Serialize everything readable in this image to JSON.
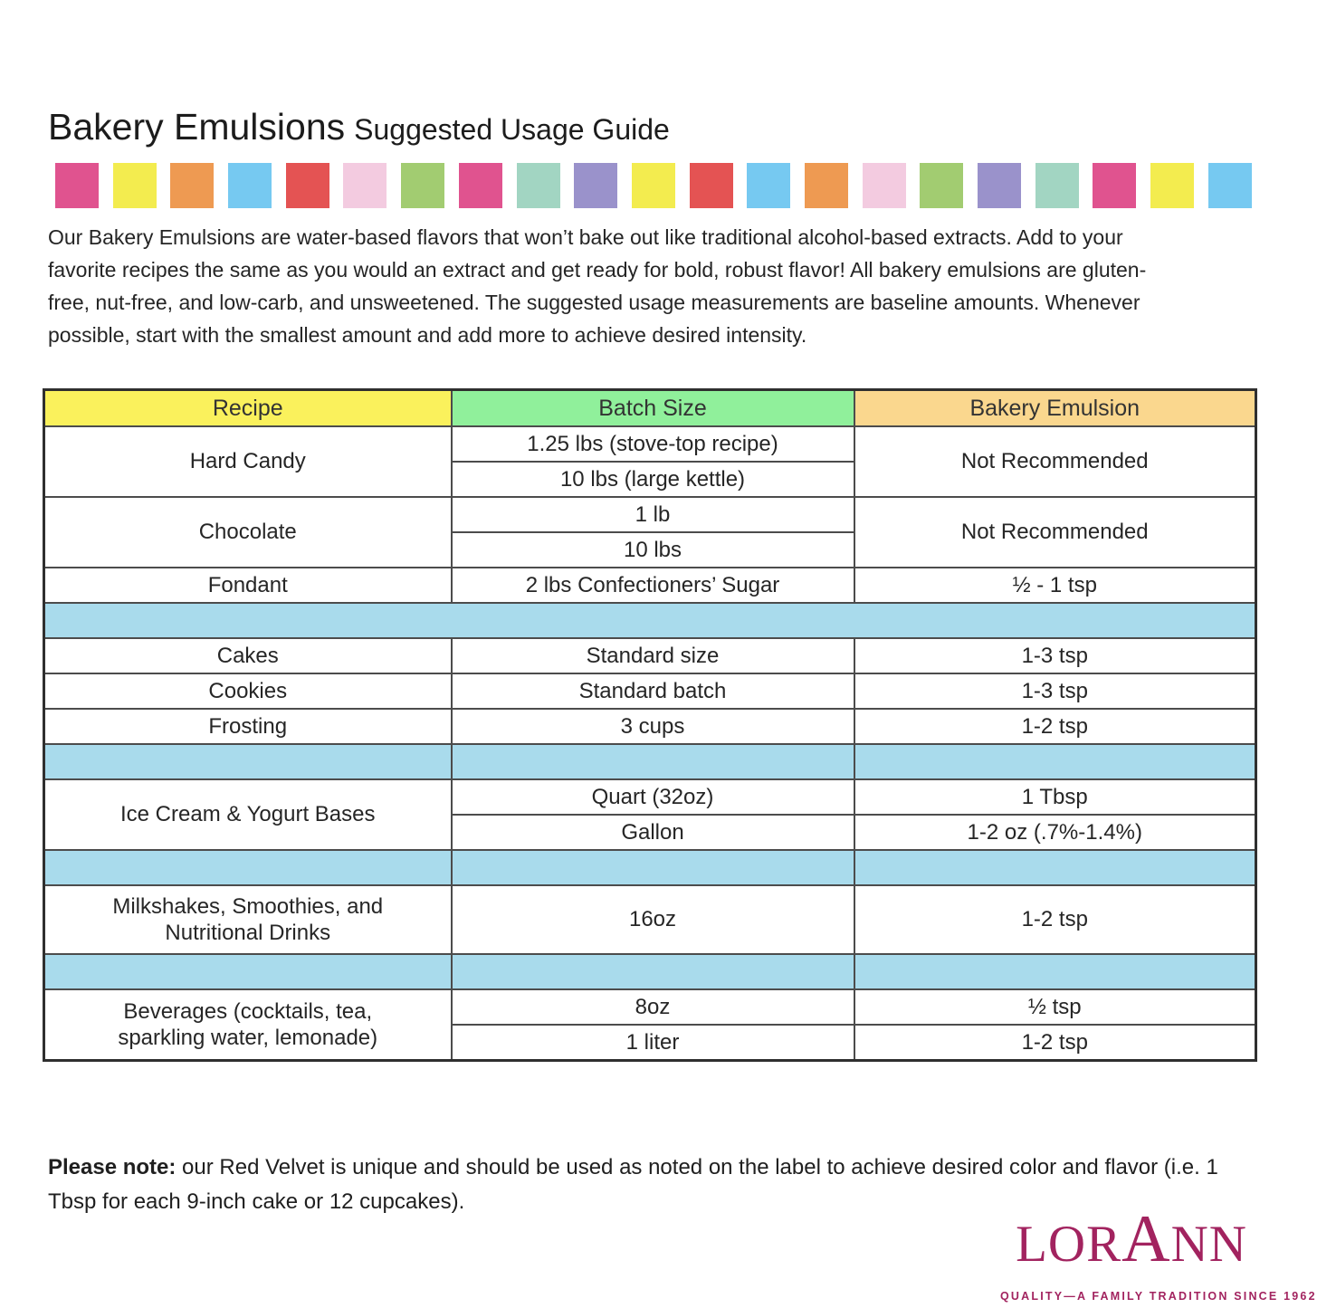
{
  "page": {
    "title_main": "Bakery Emulsions",
    "title_sub": "Suggested Usage Guide"
  },
  "colors": {
    "header_recipe": "#FAF15C",
    "header_batch": "#90F09B",
    "header_emulsion": "#FAD78E",
    "spacer_blue": "#A9DBEC",
    "logo": "#A2235F"
  },
  "stripe": {
    "colors": {
      "pink": "#E0538F",
      "yellow": "#F3EC4F",
      "orange": "#EE9A52",
      "blue": "#76C9F1",
      "red": "#E45353",
      "palepink": "#F3CBE0",
      "green": "#A2CC71",
      "seafoam": "#A2D5C2",
      "purple": "#9A92CB"
    },
    "order": [
      "pink",
      "yellow",
      "orange",
      "blue",
      "red",
      "palepink",
      "green",
      "pink",
      "seafoam",
      "purple",
      "yellow",
      "red",
      "blue",
      "orange",
      "palepink",
      "green",
      "purple",
      "seafoam",
      "pink",
      "yellow",
      "blue"
    ]
  },
  "intro": "Our Bakery Emulsions are water-based flavors that won’t bake out like traditional alcohol-based extracts. Add to your\nfavorite recipes the same as you would an extract and get ready for bold, robust flavor! All bakery emulsions are gluten-\nfree, nut-free, and low-carb, and unsweetened. The suggested usage measurements are baseline amounts. Whenever\npossible, start with the smallest amount and add more to achieve desired intensity.",
  "table": {
    "headers": {
      "recipe": "Recipe",
      "batch": "Batch Size",
      "emulsion": "Bakery Emulsion"
    },
    "cells": {
      "hard_candy": "Hard Candy",
      "hard_candy_batch1": "1.25 lbs (stove-top recipe)",
      "hard_candy_batch2": "10 lbs (large kettle)",
      "hard_candy_emulsion": "Not Recommended",
      "chocolate": "Chocolate",
      "chocolate_batch1": "1 lb",
      "chocolate_batch2": "10 lbs",
      "chocolate_emulsion": "Not Recommended",
      "fondant": "Fondant",
      "fondant_batch": "2 lbs Confectioners’ Sugar",
      "fondant_emulsion": "½ - 1 tsp",
      "cakes": "Cakes",
      "cakes_batch": "Standard size",
      "cakes_emulsion": "1-3 tsp",
      "cookies": "Cookies",
      "cookies_batch": "Standard batch",
      "cookies_emulsion": "1-3 tsp",
      "frosting": "Frosting",
      "frosting_batch": "3 cups",
      "frosting_emulsion": "1-2 tsp",
      "icecream": "Ice Cream & Yogurt Bases",
      "icecream_batch1": "Quart (32oz)",
      "icecream_emulsion1": "1 Tbsp",
      "icecream_batch2": "Gallon",
      "icecream_emulsion2": "1-2 oz (.7%-1.4%)",
      "milkshakes": "Milkshakes, Smoothies, and\nNutritional Drinks",
      "milkshakes_batch": "16oz",
      "milkshakes_emulsion": "1-2 tsp",
      "beverages": "Beverages (cocktails, tea,\nsparkling water, lemonade)",
      "beverages_batch1": "8oz",
      "beverages_emulsion1": "½ tsp",
      "beverages_batch2": "1 liter",
      "beverages_emulsion2": "1-2 tsp"
    }
  },
  "note": {
    "bold": "Please note:",
    "text": " our Red Velvet is unique and should be used as noted on the label to achieve desired color and flavor (i.e. 1\nTbsp for each 9-inch cake or 12 cupcakes)."
  },
  "logo": {
    "part1": "L",
    "part2": "OR",
    "part3": "A",
    "part4": "NN",
    "tagline": "QUALITY—A FAMILY TRADITION SINCE 1962"
  }
}
